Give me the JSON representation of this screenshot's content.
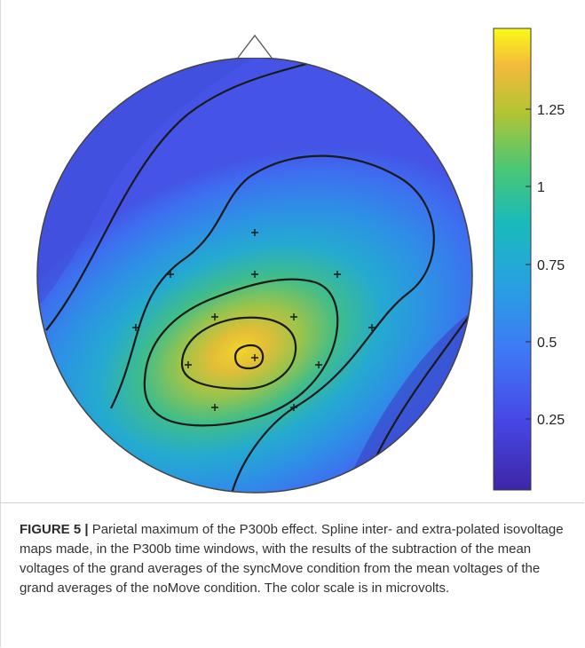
{
  "chart_data": {
    "type": "heatmap",
    "title": "",
    "colorbar": {
      "range": [
        0.0,
        1.5
      ],
      "ticks": [
        0.25,
        0.5,
        0.75,
        1,
        1.25
      ],
      "tick_labels": [
        "0.25",
        "0.5",
        "0.75",
        "1",
        "1.25"
      ],
      "colormap": [
        "#3e26a8",
        "#4771f0",
        "#2ea8df",
        "#19bfb7",
        "#5dc962",
        "#cbbd2a",
        "#f9fb15"
      ]
    },
    "max_value": 1.45,
    "electrodes": 13,
    "contour_lines": 6
  },
  "caption": {
    "label": "FIGURE 5 |",
    "text": " Parietal maximum of the P300b effect. Spline inter- and extra-polated isovoltage maps made, in the P300b time windows, with the results of the subtraction of the mean voltages of the grand averages of the syncMove condition from the mean voltages of the grand averages of the noMove condition. The color scale is in microvolts."
  }
}
